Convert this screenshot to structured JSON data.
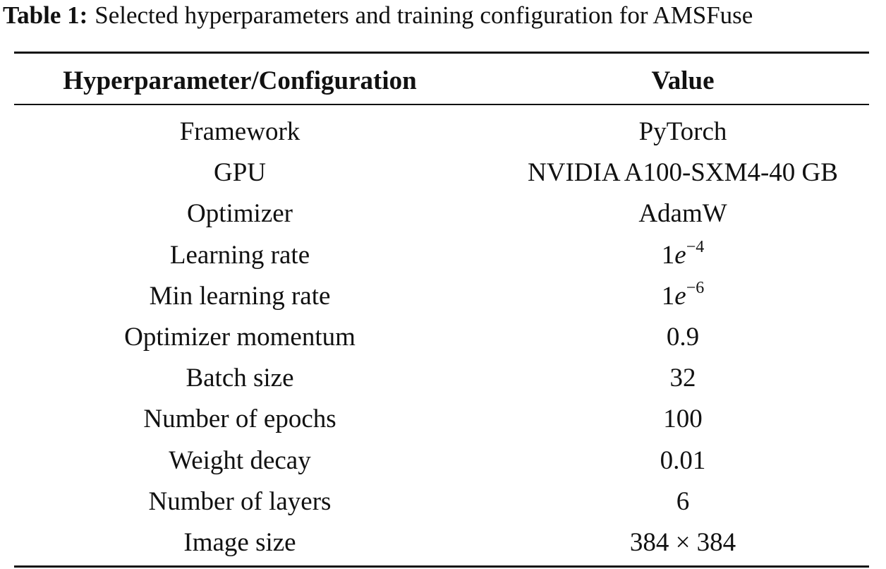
{
  "caption": {
    "label": "Table 1:",
    "text": "Selected hyperparameters and training configuration for AMSFuse"
  },
  "table": {
    "header": [
      "Hyperparameter/Configuration",
      "Value"
    ],
    "rows": [
      [
        "Framework",
        "PyTorch"
      ],
      [
        "GPU",
        "NVIDIA A100-SXM4-40 GB"
      ],
      [
        "Optimizer",
        "AdamW"
      ],
      [
        "Learning rate",
        {
          "coefficient": "1",
          "base": "e",
          "exponent": "−4"
        }
      ],
      [
        "Min learning rate",
        {
          "coefficient": "1",
          "base": "e",
          "exponent": "−6"
        }
      ],
      [
        "Optimizer momentum",
        "0.9"
      ],
      [
        "Batch size",
        "32"
      ],
      [
        "Number of epochs",
        "100"
      ],
      [
        "Weight decay",
        "0.01"
      ],
      [
        "Number of layers",
        "6"
      ],
      [
        "Image size",
        "384 × 384"
      ]
    ]
  }
}
